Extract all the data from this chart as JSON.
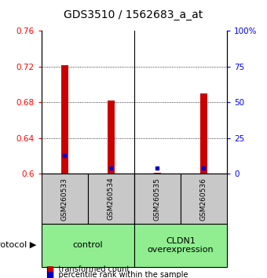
{
  "title": "GDS3510 / 1562683_a_at",
  "samples": [
    "GSM260533",
    "GSM260534",
    "GSM260535",
    "GSM260536"
  ],
  "red_values": [
    0.721,
    0.682,
    0.601,
    0.69
  ],
  "blue_values_pct": [
    13,
    4,
    4,
    4
  ],
  "red_base": 0.6,
  "ylim_left": [
    0.6,
    0.76
  ],
  "ylim_right": [
    0,
    100
  ],
  "yticks_left": [
    0.6,
    0.64,
    0.68,
    0.72,
    0.76
  ],
  "yticks_right": [
    0,
    25,
    50,
    75,
    100
  ],
  "ytick_labels_right": [
    "0",
    "25",
    "50",
    "75",
    "100%"
  ],
  "groups": [
    {
      "label": "control",
      "indices": [
        0,
        1
      ],
      "color": "#90EE90"
    },
    {
      "label": "CLDN1\noverexpression",
      "indices": [
        2,
        3
      ],
      "color": "#90EE90"
    }
  ],
  "group_label": "protocol",
  "bar_width": 0.15,
  "red_color": "#CC0000",
  "blue_color": "#0000CC",
  "sample_bg_color": "#C8C8C8",
  "legend_red_label": "transformed count",
  "legend_blue_label": "percentile rank within the sample",
  "title_fontsize": 10,
  "tick_fontsize": 7.5,
  "sample_fontsize": 6.5,
  "group_fontsize": 8
}
